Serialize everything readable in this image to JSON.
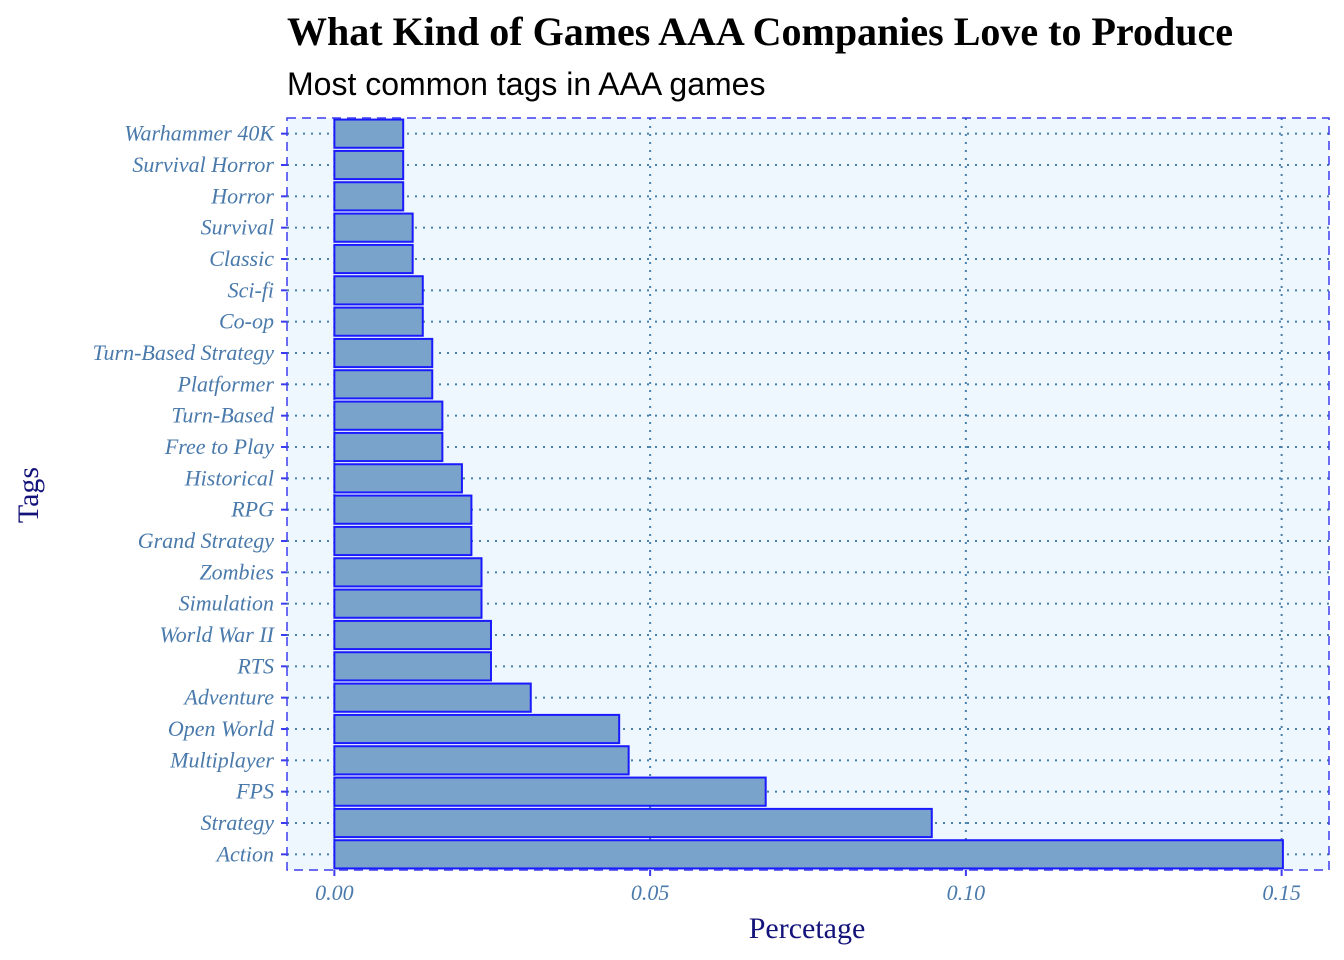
{
  "colors": {
    "panel_bg": "#eef7fe",
    "panel_border": "#3b3bf0",
    "grid": "#4a7fa8",
    "bar_fill": "#7aa3cb",
    "bar_stroke": "#1a1aff",
    "tick_text": "#4a7aab",
    "axis_title_text": "#13137a",
    "tick_mark": "#3b3bf0"
  },
  "chart_data": {
    "type": "bar",
    "orientation": "horizontal",
    "title": "What Kind of Games AAA Companies Love to Produce",
    "subtitle": "Most common tags in AAA games",
    "xlabel": "Percetage",
    "ylabel": "Tags",
    "xlim": [
      -0.0075,
      0.1575
    ],
    "xticks": [
      0.0,
      0.05,
      0.1,
      0.15
    ],
    "xtick_labels": [
      "0.00",
      "0.05",
      "0.10",
      "0.15"
    ],
    "grid": true,
    "categories": [
      "Action",
      "Strategy",
      "FPS",
      "Multiplayer",
      "Open World",
      "Adventure",
      "RTS",
      "World War II",
      "Simulation",
      "Zombies",
      "Grand Strategy",
      "RPG",
      "Historical",
      "Free to Play",
      "Turn-Based",
      "Platformer",
      "Turn-Based Strategy",
      "Co-op",
      "Sci-fi",
      "Classic",
      "Survival",
      "Horror",
      "Survival Horror",
      "Warhammer 40K"
    ],
    "values": [
      0.1502,
      0.0946,
      0.0683,
      0.0466,
      0.0451,
      0.0311,
      0.0248,
      0.0248,
      0.0233,
      0.0233,
      0.0217,
      0.0217,
      0.0202,
      0.0171,
      0.0171,
      0.0155,
      0.0155,
      0.014,
      0.014,
      0.0124,
      0.0124,
      0.0109,
      0.0109,
      0.0109
    ]
  }
}
